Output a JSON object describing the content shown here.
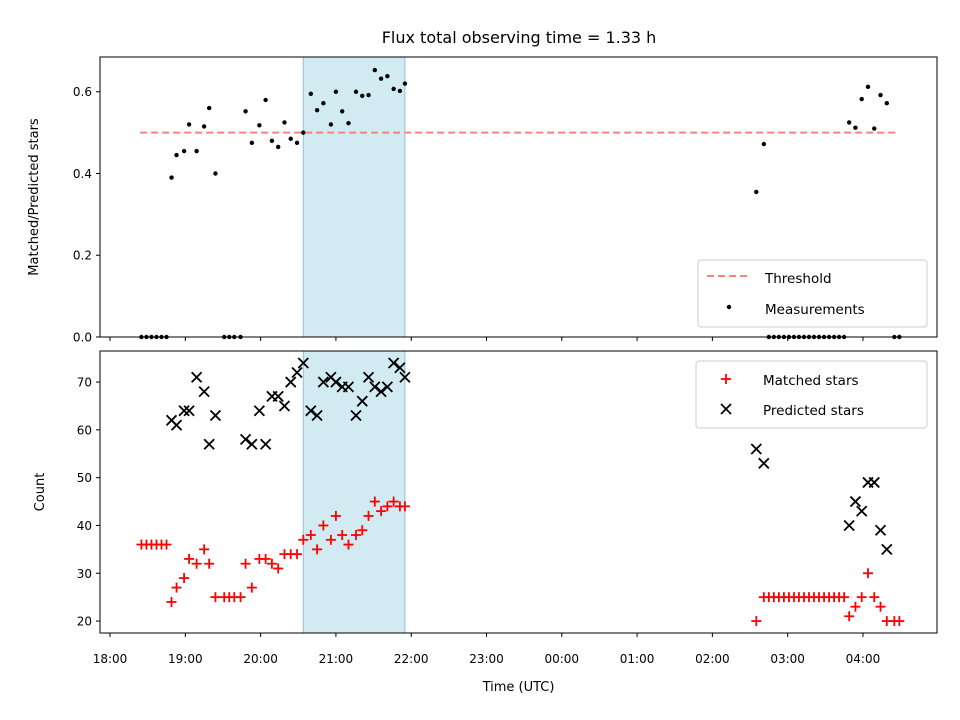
{
  "title": "Flux total observing time = 1.33 h",
  "colors": {
    "threshold": "#ff7f7f",
    "measurement": "#000000",
    "matched": "#ff0000",
    "predicted": "#000000",
    "span": "#add8e6"
  },
  "chart_data": [
    {
      "type": "scatter",
      "ylabel": "Matched/Predicted stars",
      "xlabel": "",
      "xlim": [
        "17:52",
        "04:59"
      ],
      "ylim": [
        0,
        0.685
      ],
      "xtick_labels": [
        "18:00",
        "19:00",
        "20:00",
        "21:00",
        "22:00",
        "23:00",
        "00:00",
        "01:00",
        "02:00",
        "03:00",
        "04:00"
      ],
      "yticks": [
        0.0,
        0.2,
        0.4,
        0.6
      ],
      "ytick_labels": [
        "0.0",
        "0.2",
        "0.4",
        "0.6"
      ],
      "highlight_span": [
        "20:34",
        "21:55"
      ],
      "legend": {
        "placement": "lower right",
        "entries": [
          "Threshold",
          "Measurements"
        ]
      },
      "threshold": {
        "name": "Threshold",
        "y": 0.5,
        "x_range": [
          "18:24",
          "04:28"
        ],
        "style": "dashed"
      },
      "measurements": {
        "name": "Measurements",
        "points": [
          [
            "18:25",
            0
          ],
          [
            "18:29",
            0
          ],
          [
            "18:33",
            0
          ],
          [
            "18:37",
            0
          ],
          [
            "18:41",
            0
          ],
          [
            "18:45",
            0
          ],
          [
            "18:49",
            0.39
          ],
          [
            "18:53",
            0.445
          ],
          [
            "18:59",
            0.455
          ],
          [
            "19:03",
            0.52
          ],
          [
            "19:09",
            0.455
          ],
          [
            "19:15",
            0.515
          ],
          [
            "19:19",
            0.56
          ],
          [
            "19:24",
            0.4
          ],
          [
            "19:31",
            0
          ],
          [
            "19:35",
            0
          ],
          [
            "19:39",
            0
          ],
          [
            "19:44",
            0
          ],
          [
            "19:48",
            0.552
          ],
          [
            "19:53",
            0.475
          ],
          [
            "19:59",
            0.518
          ],
          [
            "20:04",
            0.58
          ],
          [
            "20:09",
            0.48
          ],
          [
            "20:14",
            0.465
          ],
          [
            "20:19",
            0.525
          ],
          [
            "20:24",
            0.485
          ],
          [
            "20:29",
            0.475
          ],
          [
            "20:34",
            0.5
          ],
          [
            "20:40",
            0.595
          ],
          [
            "20:45",
            0.555
          ],
          [
            "20:50",
            0.572
          ],
          [
            "20:56",
            0.52
          ],
          [
            "21:00",
            0.6
          ],
          [
            "21:05",
            0.552
          ],
          [
            "21:10",
            0.523
          ],
          [
            "21:16",
            0.6
          ],
          [
            "21:21",
            0.59
          ],
          [
            "21:26",
            0.592
          ],
          [
            "21:31",
            0.653
          ],
          [
            "21:36",
            0.632
          ],
          [
            "21:41",
            0.638
          ],
          [
            "21:46",
            0.607
          ],
          [
            "21:51",
            0.602
          ],
          [
            "21:55",
            0.62
          ],
          [
            "02:35",
            0.355
          ],
          [
            "02:41",
            0.472
          ],
          [
            "02:45",
            0
          ],
          [
            "02:49",
            0
          ],
          [
            "02:53",
            0
          ],
          [
            "02:57",
            0
          ],
          [
            "03:01",
            0
          ],
          [
            "03:05",
            0
          ],
          [
            "03:09",
            0
          ],
          [
            "03:13",
            0
          ],
          [
            "03:17",
            0
          ],
          [
            "03:21",
            0
          ],
          [
            "03:25",
            0
          ],
          [
            "03:29",
            0
          ],
          [
            "03:33",
            0
          ],
          [
            "03:37",
            0
          ],
          [
            "03:41",
            0
          ],
          [
            "03:45",
            0
          ],
          [
            "03:49",
            0.525
          ],
          [
            "03:54",
            0.512
          ],
          [
            "03:59",
            0.582
          ],
          [
            "04:04",
            0.612
          ],
          [
            "04:09",
            0.51
          ],
          [
            "04:14",
            0.592
          ],
          [
            "04:19",
            0.572
          ],
          [
            "04:25",
            0
          ],
          [
            "04:29",
            0
          ]
        ]
      }
    },
    {
      "type": "scatter",
      "ylabel": "Count",
      "xlabel": "Time (UTC)",
      "xlim": [
        "17:52",
        "04:59"
      ],
      "ylim": [
        17.5,
        76.5
      ],
      "xtick_labels": [
        "18:00",
        "19:00",
        "20:00",
        "21:00",
        "22:00",
        "23:00",
        "00:00",
        "01:00",
        "02:00",
        "03:00",
        "04:00"
      ],
      "yticks": [
        20,
        30,
        40,
        50,
        60,
        70
      ],
      "ytick_labels": [
        "20",
        "30",
        "40",
        "50",
        "60",
        "70"
      ],
      "highlight_span": [
        "20:34",
        "21:55"
      ],
      "legend": {
        "placement": "upper right",
        "entries": [
          "Matched stars",
          "Predicted stars"
        ]
      },
      "series": [
        {
          "name": "Matched stars",
          "marker": "plus",
          "points": [
            [
              "18:25",
              36
            ],
            [
              "18:29",
              36
            ],
            [
              "18:33",
              36
            ],
            [
              "18:37",
              36
            ],
            [
              "18:41",
              36
            ],
            [
              "18:45",
              36
            ],
            [
              "18:49",
              24
            ],
            [
              "18:53",
              27
            ],
            [
              "18:59",
              29
            ],
            [
              "19:03",
              33
            ],
            [
              "19:09",
              32
            ],
            [
              "19:15",
              35
            ],
            [
              "19:19",
              32
            ],
            [
              "19:24",
              25
            ],
            [
              "19:31",
              25
            ],
            [
              "19:35",
              25
            ],
            [
              "19:39",
              25
            ],
            [
              "19:44",
              25
            ],
            [
              "19:48",
              32
            ],
            [
              "19:53",
              27
            ],
            [
              "19:59",
              33
            ],
            [
              "20:04",
              33
            ],
            [
              "20:09",
              32
            ],
            [
              "20:14",
              31
            ],
            [
              "20:19",
              34
            ],
            [
              "20:24",
              34
            ],
            [
              "20:29",
              34
            ],
            [
              "20:34",
              37
            ],
            [
              "20:40",
              38
            ],
            [
              "20:45",
              35
            ],
            [
              "20:50",
              40
            ],
            [
              "20:56",
              37
            ],
            [
              "21:00",
              42
            ],
            [
              "21:05",
              38
            ],
            [
              "21:10",
              36
            ],
            [
              "21:16",
              38
            ],
            [
              "21:21",
              39
            ],
            [
              "21:26",
              42
            ],
            [
              "21:31",
              45
            ],
            [
              "21:36",
              43
            ],
            [
              "21:41",
              44
            ],
            [
              "21:46",
              45
            ],
            [
              "21:51",
              44
            ],
            [
              "21:55",
              44
            ],
            [
              "02:35",
              20
            ],
            [
              "02:41",
              25
            ],
            [
              "02:45",
              25
            ],
            [
              "02:49",
              25
            ],
            [
              "02:53",
              25
            ],
            [
              "02:57",
              25
            ],
            [
              "03:01",
              25
            ],
            [
              "03:05",
              25
            ],
            [
              "03:09",
              25
            ],
            [
              "03:13",
              25
            ],
            [
              "03:17",
              25
            ],
            [
              "03:21",
              25
            ],
            [
              "03:25",
              25
            ],
            [
              "03:29",
              25
            ],
            [
              "03:33",
              25
            ],
            [
              "03:37",
              25
            ],
            [
              "03:41",
              25
            ],
            [
              "03:45",
              25
            ],
            [
              "03:49",
              21
            ],
            [
              "03:54",
              23
            ],
            [
              "03:59",
              25
            ],
            [
              "04:04",
              30
            ],
            [
              "04:09",
              25
            ],
            [
              "04:14",
              23
            ],
            [
              "04:19",
              20
            ],
            [
              "04:25",
              20
            ],
            [
              "04:29",
              20
            ]
          ]
        },
        {
          "name": "Predicted stars",
          "marker": "x",
          "points": [
            [
              "18:49",
              62
            ],
            [
              "18:53",
              61
            ],
            [
              "18:59",
              64
            ],
            [
              "19:03",
              64
            ],
            [
              "19:09",
              71
            ],
            [
              "19:15",
              68
            ],
            [
              "19:19",
              57
            ],
            [
              "19:24",
              63
            ],
            [
              "19:48",
              58
            ],
            [
              "19:53",
              57
            ],
            [
              "19:59",
              64
            ],
            [
              "20:04",
              57
            ],
            [
              "20:09",
              67
            ],
            [
              "20:14",
              67
            ],
            [
              "20:19",
              65
            ],
            [
              "20:24",
              70
            ],
            [
              "20:29",
              72
            ],
            [
              "20:34",
              74
            ],
            [
              "20:40",
              64
            ],
            [
              "20:45",
              63
            ],
            [
              "20:50",
              70
            ],
            [
              "20:56",
              71
            ],
            [
              "21:00",
              70
            ],
            [
              "21:05",
              69
            ],
            [
              "21:10",
              69
            ],
            [
              "21:16",
              63
            ],
            [
              "21:21",
              66
            ],
            [
              "21:26",
              71
            ],
            [
              "21:31",
              69
            ],
            [
              "21:36",
              68
            ],
            [
              "21:41",
              69
            ],
            [
              "21:46",
              74
            ],
            [
              "21:51",
              73
            ],
            [
              "21:55",
              71
            ],
            [
              "02:35",
              56
            ],
            [
              "02:41",
              53
            ],
            [
              "03:49",
              40
            ],
            [
              "03:54",
              45
            ],
            [
              "03:59",
              43
            ],
            [
              "04:04",
              49
            ],
            [
              "04:09",
              49
            ],
            [
              "04:14",
              39
            ],
            [
              "04:19",
              35
            ]
          ]
        }
      ]
    }
  ]
}
